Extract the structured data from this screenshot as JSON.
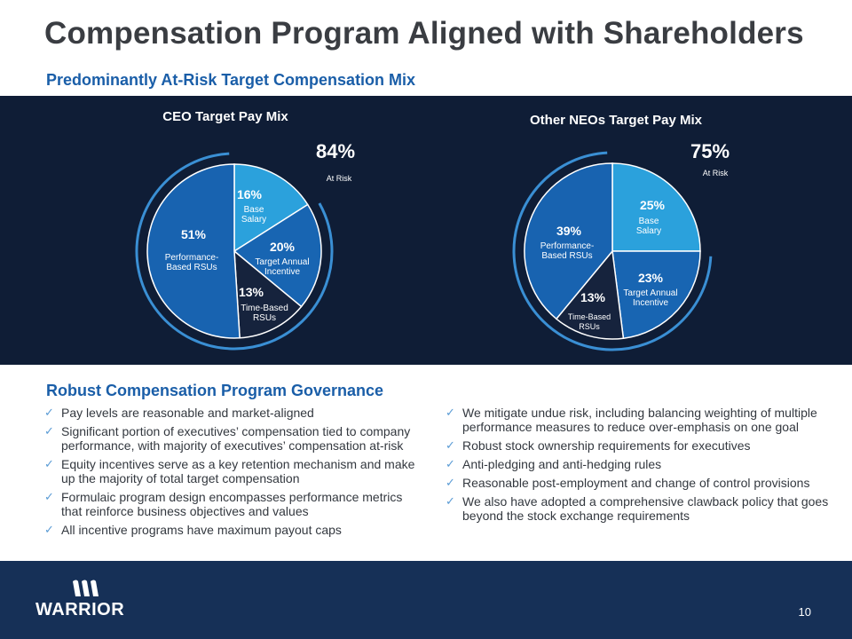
{
  "title": "Compensation Program Aligned with Shareholders",
  "subtitle": "Predominantly At-Risk Target Compensation Mix",
  "colors": {
    "band_bg": "#0f1d36",
    "base_salary": "#2ba1dc",
    "target_incentive": "#1865b2",
    "time_rsu": "#16233d",
    "perf_rsu": "#1863b0",
    "at_risk_arc": "#3a8fd4",
    "footer_bg": "#163057"
  },
  "chart_data": [
    {
      "type": "pie",
      "title": "CEO Target Pay Mix",
      "at_risk_pct": "84%",
      "at_risk_label": "At Risk",
      "slices": [
        {
          "pct_label": "16%",
          "name": "Base Salary",
          "value": 16
        },
        {
          "pct_label": "20%",
          "name": "Target Annual Incentive",
          "value": 20
        },
        {
          "pct_label": "13%",
          "name": "Time-Based RSUs",
          "value": 13
        },
        {
          "pct_label": "51%",
          "name": "Performance-Based RSUs",
          "value": 51
        }
      ]
    },
    {
      "type": "pie",
      "title": "Other NEOs Target Pay Mix",
      "at_risk_pct": "75%",
      "at_risk_label": "At Risk",
      "slices": [
        {
          "pct_label": "25%",
          "name": "Base Salary",
          "value": 25
        },
        {
          "pct_label": "23%",
          "name": "Target Annual Incentive",
          "value": 23
        },
        {
          "pct_label": "13%",
          "name": "Time-Based RSUs",
          "value": 13
        },
        {
          "pct_label": "39%",
          "name": "Performance-Based RSUs",
          "value": 39
        }
      ]
    }
  ],
  "governance": {
    "title": "Robust Compensation Program Governance",
    "left": [
      "Pay levels are reasonable and market-aligned",
      "Significant portion of executives’ compensation tied to company performance, with majority of executives’ compensation at-risk",
      "Equity incentives serve as a key retention mechanism and make up the majority of total target compensation",
      "Formulaic program design encompasses performance metrics that reinforce business objectives and values",
      "All incentive programs have maximum payout caps"
    ],
    "right": [
      "We mitigate undue risk, including balancing weighting of multiple performance measures to reduce over-emphasis on one goal",
      "Robust stock ownership requirements for executives",
      "Anti-pledging and anti-hedging rules",
      "Reasonable post-employment and change of control provisions",
      "We also have adopted a comprehensive clawback policy that goes beyond the stock exchange requirements"
    ]
  },
  "footer": {
    "logo_text": "WARRIOR",
    "page_number": "10"
  }
}
